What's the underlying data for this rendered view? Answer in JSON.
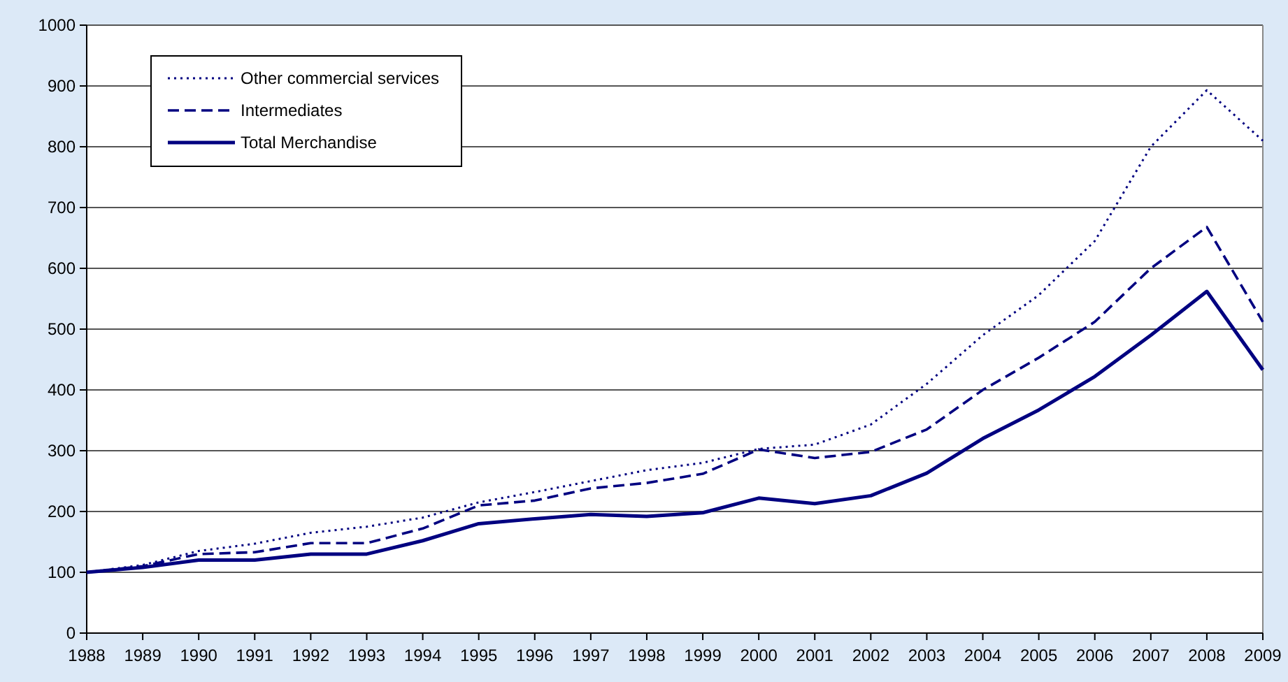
{
  "chart_data": {
    "type": "line",
    "x": [
      1988,
      1989,
      1990,
      1991,
      1992,
      1993,
      1994,
      1995,
      1996,
      1997,
      1998,
      1999,
      2000,
      2001,
      2002,
      2003,
      2004,
      2005,
      2006,
      2007,
      2008,
      2009
    ],
    "xlim": [
      1988,
      2009
    ],
    "xticks": [
      1988,
      1989,
      1990,
      1991,
      1992,
      1993,
      1994,
      1995,
      1996,
      1997,
      1998,
      1999,
      2000,
      2001,
      2002,
      2003,
      2004,
      2005,
      2006,
      2007,
      2008,
      2009
    ],
    "ylim": [
      0,
      1000
    ],
    "yticks": [
      0,
      100,
      200,
      300,
      400,
      500,
      600,
      700,
      800,
      900,
      1000
    ],
    "grid": "y",
    "legend": "top left",
    "marker": "none",
    "series": [
      {
        "name": "Other commercial services",
        "color": "#000080",
        "line_style": "dotted",
        "values": [
          100,
          112,
          135,
          147,
          165,
          175,
          190,
          215,
          232,
          250,
          268,
          280,
          303,
          310,
          343,
          410,
          490,
          556,
          645,
          800,
          893,
          810
        ]
      },
      {
        "name": "Intermediates",
        "color": "#000080",
        "line_style": "dashed",
        "values": [
          100,
          110,
          130,
          133,
          148,
          148,
          172,
          210,
          218,
          238,
          247,
          262,
          302,
          288,
          298,
          335,
          400,
          453,
          512,
          600,
          668,
          512
        ]
      },
      {
        "name": "Total Merchandise",
        "color": "#000080",
        "line_style": "solid",
        "values": [
          100,
          108,
          120,
          120,
          130,
          130,
          152,
          180,
          188,
          195,
          192,
          198,
          222,
          213,
          226,
          263,
          320,
          367,
          422,
          490,
          562,
          433
        ]
      }
    ]
  }
}
